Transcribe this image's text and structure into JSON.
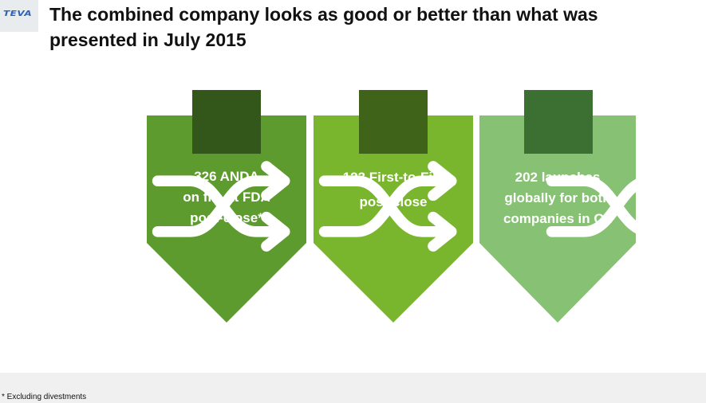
{
  "logo": {
    "text": "TEVA",
    "color": "#2c62b8"
  },
  "title": "The combined company looks as good or better than what was presented in July 2015",
  "cards": [
    {
      "icon": "shuffle-icon",
      "lines": [
        "326 ANDA",
        "on file at FDA",
        "post-close*"
      ],
      "body_color": "#5e9b2e",
      "tab_color": "#33571a"
    },
    {
      "icon": "shuffle-icon",
      "lines": [
        "123 First-to-File",
        "post-close"
      ],
      "body_color": "#7ab62d",
      "tab_color": "#3f6319"
    },
    {
      "icon": "shuffle-icon",
      "lines": [
        "202 launches",
        "globally for both",
        "companies in Q1"
      ],
      "body_color": "#87c174",
      "tab_color": "#3b7032"
    }
  ],
  "footnote": "* Excluding divestments"
}
